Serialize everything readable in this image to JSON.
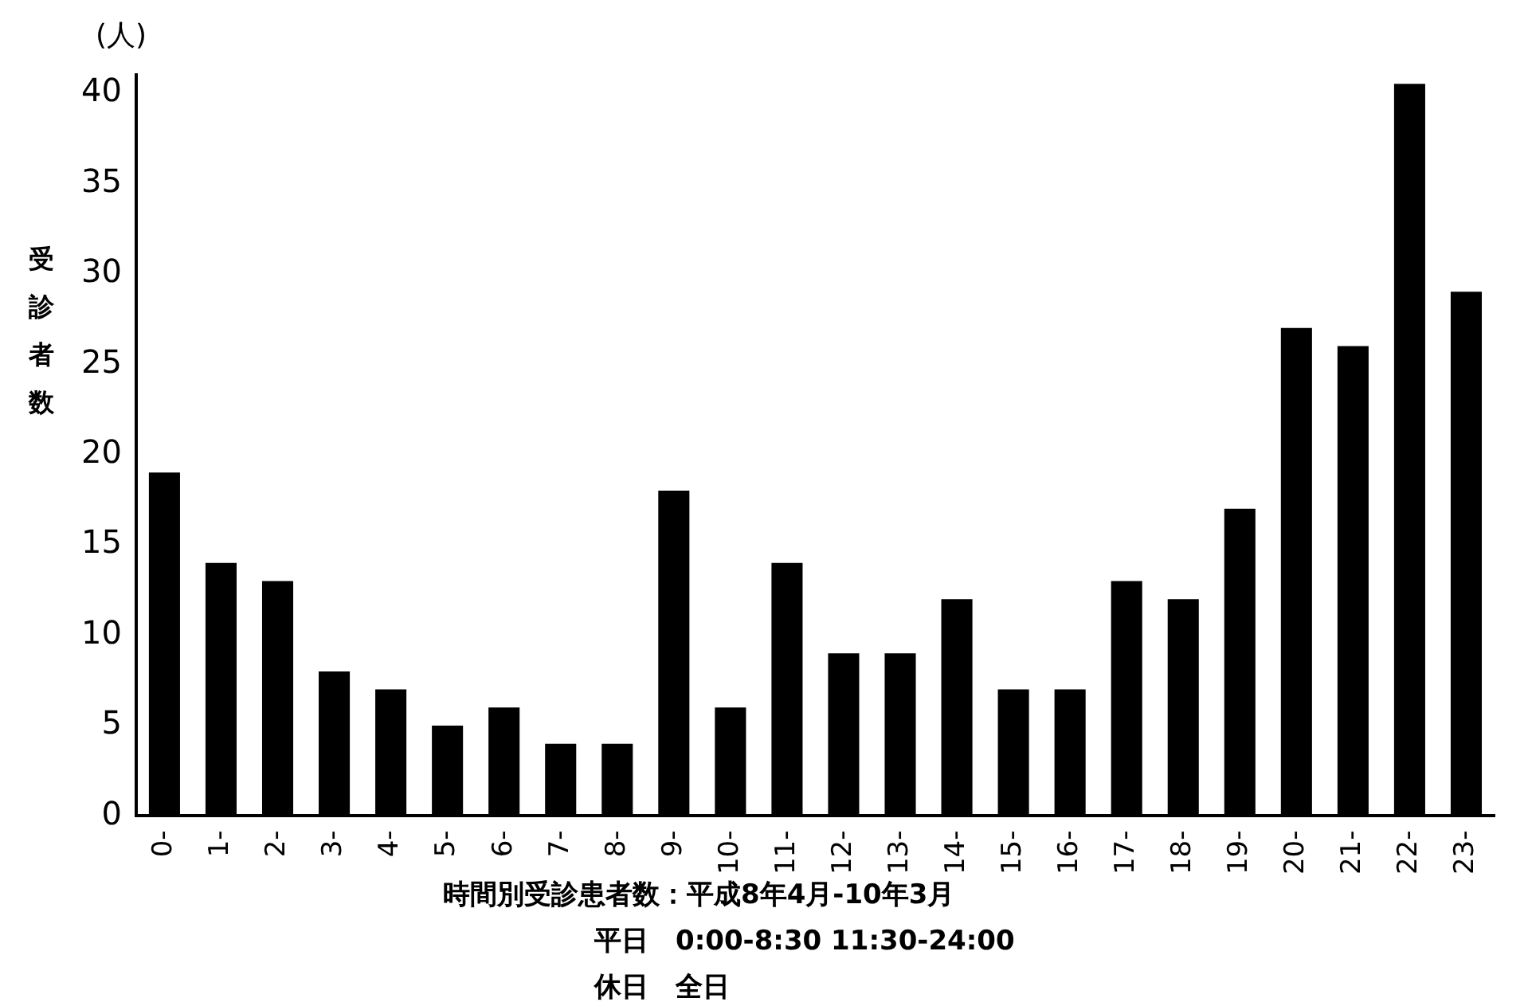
{
  "chart_data": {
    "type": "bar",
    "ylabel": "受診者数",
    "categories": [
      "0-",
      "1-",
      "2-",
      "3-",
      "4-",
      "5-",
      "6-",
      "7-",
      "8-",
      "9-",
      "10-",
      "11-",
      "12-",
      "13-",
      "14-",
      "15-",
      "16-",
      "17-",
      "18-",
      "19-",
      "20-",
      "21-",
      "22-",
      "23-"
    ],
    "values": [
      19,
      14,
      13,
      8,
      7,
      5,
      6,
      4,
      4,
      18,
      6,
      14,
      9,
      9,
      12,
      7,
      7,
      13,
      12,
      17,
      27,
      26,
      40.5,
      29
    ],
    "color": "#000000",
    "ylim": [
      0,
      41
    ],
    "yticks": [
      0,
      5,
      10,
      15,
      20,
      25,
      30,
      35,
      40
    ],
    "grid": false,
    "legend": false,
    "annotations": [
      "(人)",
      "時間別受診患者数：平成8年4月-10年3月",
      "平日　0:00-8:30 11:30-24:00",
      "休日　全日"
    ]
  }
}
